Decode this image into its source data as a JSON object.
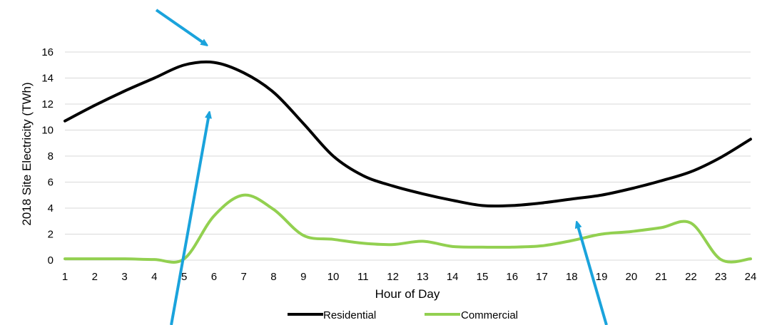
{
  "colors": {
    "residential": "#000000",
    "commercial": "#92D050",
    "arrow": "#1AA3DC",
    "grid": "#D9D9D9"
  },
  "chart_data": {
    "type": "line",
    "xlabel": "Hour of Day",
    "ylabel": "2018 Site Electricity (TWh)",
    "x": [
      1,
      2,
      3,
      4,
      5,
      6,
      7,
      8,
      9,
      10,
      11,
      12,
      13,
      14,
      15,
      16,
      17,
      18,
      19,
      20,
      21,
      22,
      23,
      24
    ],
    "xlim": [
      1,
      24
    ],
    "ylim": [
      0,
      16
    ],
    "yticks": [
      0,
      2,
      4,
      6,
      8,
      10,
      12,
      14,
      16
    ],
    "grid": true,
    "legend_position": "bottom",
    "series": [
      {
        "name": "Residential",
        "values": [
          10.7,
          11.9,
          13.0,
          14.0,
          15.0,
          15.2,
          14.4,
          12.9,
          10.5,
          8.0,
          6.5,
          5.7,
          5.1,
          4.6,
          4.2,
          4.2,
          4.4,
          4.7,
          5.0,
          5.5,
          6.1,
          6.8,
          7.9,
          9.3
        ]
      },
      {
        "name": "Commercial",
        "values": [
          0.1,
          0.1,
          0.1,
          0.05,
          0.1,
          3.4,
          5.0,
          3.9,
          1.9,
          1.6,
          1.3,
          1.2,
          1.45,
          1.05,
          1.0,
          1.0,
          1.1,
          1.5,
          2.0,
          2.2,
          2.5,
          2.85,
          0.05,
          0.1
        ]
      }
    ]
  }
}
